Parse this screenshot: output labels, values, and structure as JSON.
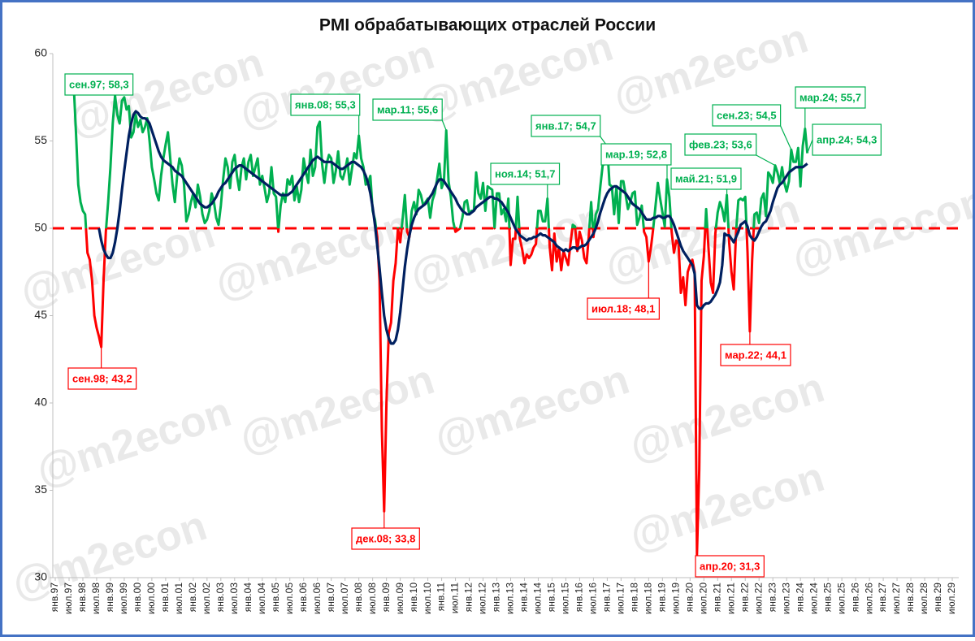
{
  "chart_data": {
    "type": "line",
    "title": "PMI обрабатывающих отраслей России",
    "watermark": "@m2econ",
    "ylim": [
      30,
      60
    ],
    "yticks": [
      30,
      35,
      40,
      45,
      50,
      55,
      60
    ],
    "grid": false,
    "threshold": {
      "value": 50,
      "color": "#ff0000"
    },
    "categories": [
      "янв.97",
      null,
      null,
      null,
      null,
      null,
      "июл.97",
      null,
      null,
      null,
      null,
      null,
      "янв.98",
      null,
      null,
      null,
      null,
      null,
      "июл.98",
      null,
      null,
      null,
      null,
      null,
      "янв.99",
      null,
      null,
      null,
      null,
      null,
      "июл.99",
      null,
      null,
      null,
      null,
      null,
      "янв.00",
      null,
      null,
      null,
      null,
      null,
      "июл.00",
      null,
      null,
      null,
      null,
      null,
      "янв.01",
      null,
      null,
      null,
      null,
      null,
      "июл.01",
      null,
      null,
      null,
      null,
      null,
      "янв.02",
      null,
      null,
      null,
      null,
      null,
      "июл.02",
      null,
      null,
      null,
      null,
      null,
      "янв.03",
      null,
      null,
      null,
      null,
      null,
      "июл.03",
      null,
      null,
      null,
      null,
      null,
      "янв.04",
      null,
      null,
      null,
      null,
      null,
      "июл.04",
      null,
      null,
      null,
      null,
      null,
      "янв.05",
      null,
      null,
      null,
      null,
      null,
      "июл.05",
      null,
      null,
      null,
      null,
      null,
      "янв.06",
      null,
      null,
      null,
      null,
      null,
      "июл.06",
      null,
      null,
      null,
      null,
      null,
      "янв.07",
      null,
      null,
      null,
      null,
      null,
      "июл.07",
      null,
      null,
      null,
      null,
      null,
      "янв.08",
      null,
      null,
      null,
      null,
      null,
      "июл.08",
      null,
      null,
      null,
      null,
      null,
      "янв.09",
      null,
      null,
      null,
      null,
      null,
      "июл.09",
      null,
      null,
      null,
      null,
      null,
      "янв.10",
      null,
      null,
      null,
      null,
      null,
      "июл.10",
      null,
      null,
      null,
      null,
      null,
      "янв.11",
      null,
      null,
      null,
      null,
      null,
      "июл.11",
      null,
      null,
      null,
      null,
      null,
      "янв.12",
      null,
      null,
      null,
      null,
      null,
      "июл.12",
      null,
      null,
      null,
      null,
      null,
      "янв.13",
      null,
      null,
      null,
      null,
      null,
      "июл.13",
      null,
      null,
      null,
      null,
      null,
      "янв.14",
      null,
      null,
      null,
      null,
      null,
      "июл.14",
      null,
      null,
      null,
      null,
      null,
      "янв.15",
      null,
      null,
      null,
      null,
      null,
      "июл.15",
      null,
      null,
      null,
      null,
      null,
      "янв.16",
      null,
      null,
      null,
      null,
      null,
      "июл.16",
      null,
      null,
      null,
      null,
      null,
      "янв.17",
      null,
      null,
      null,
      null,
      null,
      "июл.17",
      null,
      null,
      null,
      null,
      null,
      "янв.18",
      null,
      null,
      null,
      null,
      null,
      "июл.18",
      null,
      null,
      null,
      null,
      null,
      "янв.19",
      null,
      null,
      null,
      null,
      null,
      "июл.19",
      null,
      null,
      null,
      null,
      null,
      "янв.20",
      null,
      null,
      null,
      null,
      null,
      "июл.20",
      null,
      null,
      null,
      null,
      null,
      "янв.21",
      null,
      null,
      null,
      null,
      null,
      "июл.21",
      null,
      null,
      null,
      null,
      null,
      "янв.22",
      null,
      null,
      null,
      null,
      null,
      "июл.22",
      null,
      null,
      null,
      null,
      null,
      "янв.23",
      null,
      null,
      null,
      null,
      null,
      "июл.23",
      null,
      null,
      null,
      null,
      null,
      "янв.24",
      null,
      null,
      null,
      null,
      null,
      "июл.24",
      null,
      null,
      null,
      null,
      null,
      "янв.25",
      null,
      null,
      null,
      null,
      null,
      "июл.25",
      null,
      null,
      null,
      null,
      null,
      "янв.26",
      null,
      null,
      null,
      null,
      null,
      "июл.26",
      null,
      null,
      null,
      null,
      null,
      "янв.27",
      null,
      null,
      null,
      null,
      null,
      "июл.27",
      null,
      null,
      null,
      null,
      null,
      "янв.28",
      null,
      null,
      null,
      null,
      null,
      "июл.28",
      null,
      null,
      null,
      null,
      null,
      "янв.29",
      null,
      null,
      null,
      null,
      null,
      "июл.29"
    ],
    "series": [
      {
        "color_above": "#00b050",
        "color_below": "#ff0000",
        "values": [
          null,
          null,
          null,
          null,
          null,
          null,
          null,
          null,
          58.3,
          55.5,
          52.5,
          51.5,
          51.0,
          50.8,
          48.6,
          48.2,
          47.0,
          45.0,
          44.3,
          43.8,
          43.2,
          47.0,
          49.8,
          51.5,
          53.5,
          56.0,
          57.6,
          56.5,
          56.0,
          57.3,
          57.5,
          56.8,
          57.0,
          55.2,
          55.5,
          56.5,
          55.8,
          56.2,
          55.5,
          55.8,
          56.3,
          55.0,
          53.5,
          52.8,
          52.0,
          51.6,
          53.0,
          54.0,
          54.8,
          55.5,
          54.0,
          52.5,
          51.5,
          53.0,
          54.0,
          53.6,
          52.5,
          50.4,
          50.8,
          51.5,
          52.0,
          51.2,
          52.5,
          51.8,
          50.8,
          50.3,
          50.5,
          51.0,
          52.0,
          51.5,
          50.6,
          50.2,
          51.3,
          52.8,
          54.0,
          53.5,
          52.3,
          53.8,
          54.2,
          53.0,
          52.2,
          53.5,
          54.0,
          52.8,
          53.8,
          54.2,
          53.0,
          53.5,
          54.0,
          52.5,
          53.0,
          52.3,
          51.5,
          52.0,
          53.5,
          52.0,
          51.8,
          49.8,
          51.3,
          52.0,
          51.5,
          52.8,
          52.5,
          53.0,
          51.6,
          52.4,
          51.5,
          52.2,
          54.0,
          53.2,
          52.6,
          54.5,
          53.0,
          53.5,
          55.8,
          56.1,
          53.7,
          52.6,
          53.7,
          54.2,
          54.0,
          52.6,
          53.3,
          54.4,
          53.0,
          52.8,
          53.3,
          54.0,
          52.5,
          53.4,
          54.3,
          54.0,
          55.3,
          54.0,
          53.5,
          52.5,
          52.6,
          53.0,
          51.0,
          50.5,
          49.5,
          47.0,
          38.5,
          33.8,
          40.0,
          44.0,
          44.6,
          47.0,
          48.0,
          50.0,
          49.2,
          50.5,
          51.9,
          49.8,
          49.5,
          51.0,
          51.5,
          50.8,
          52.2,
          51.9,
          51.3,
          51.5,
          51.7,
          50.6,
          51.6,
          52.0,
          52.8,
          53.7,
          52.3,
          52.7,
          55.6,
          52.7,
          51.8,
          50.4,
          49.8,
          49.9,
          50.0,
          50.6,
          51.5,
          51.6,
          50.8,
          51.0,
          51.0,
          53.2,
          52.0,
          51.7,
          52.6,
          51.0,
          52.4,
          52.3,
          52.2,
          50.0,
          52.0,
          52.0,
          50.8,
          51.1,
          50.4,
          51.7,
          47.9,
          49.4,
          49.4,
          51.8,
          49.4,
          48.8,
          48.0,
          48.5,
          48.3,
          48.5,
          48.9,
          49.1,
          51.0,
          51.0,
          50.4,
          50.4,
          51.7,
          48.9,
          47.6,
          49.7,
          48.1,
          48.9,
          47.6,
          48.7,
          48.3,
          47.9,
          49.1,
          50.2,
          50.1,
          48.7,
          49.8,
          49.3,
          48.3,
          48.0,
          49.6,
          51.5,
          49.5,
          50.8,
          51.1,
          52.4,
          53.6,
          53.7,
          54.7,
          52.5,
          52.4,
          50.8,
          52.4,
          50.3,
          52.7,
          52.7,
          51.9,
          51.1,
          51.5,
          52.0,
          52.1,
          50.2,
          50.6,
          51.3,
          49.8,
          49.5,
          48.1,
          48.9,
          50.0,
          51.3,
          52.6,
          51.7,
          50.9,
          50.1,
          52.8,
          51.8,
          49.8,
          48.6,
          49.3,
          49.1,
          46.3,
          47.2,
          45.6,
          47.5,
          47.9,
          48.2,
          47.5,
          31.3,
          36.2,
          47.0,
          48.4,
          51.1,
          48.9,
          46.9,
          46.3,
          49.7,
          50.9,
          51.5,
          51.1,
          50.4,
          51.9,
          49.2,
          47.5,
          46.5,
          49.8,
          51.6,
          51.7,
          51.6,
          51.8,
          48.6,
          44.1,
          48.2,
          50.8,
          50.9,
          50.3,
          51.7,
          52.0,
          50.7,
          53.2,
          53.0,
          52.6,
          53.6,
          53.2,
          52.6,
          53.5,
          52.6,
          52.1,
          52.7,
          54.5,
          53.8,
          53.8,
          54.6,
          52.4,
          54.7,
          55.7,
          54.3,
          null,
          null,
          null,
          null,
          null,
          null,
          null,
          null,
          null,
          null,
          null,
          null,
          null,
          null,
          null,
          null,
          null,
          null,
          null,
          null,
          null,
          null,
          null,
          null,
          null,
          null,
          null,
          null,
          null,
          null,
          null,
          null,
          null,
          null,
          null,
          null,
          null,
          null,
          null,
          null,
          null,
          null,
          null,
          null,
          null,
          null,
          null,
          null,
          null,
          null,
          null,
          null,
          null,
          null,
          null,
          null,
          null,
          null,
          null,
          null,
          null,
          null,
          null
        ]
      },
      {
        "color": "#002060",
        "values": [
          null,
          null,
          null,
          null,
          null,
          null,
          null,
          null,
          null,
          null,
          null,
          null,
          null,
          null,
          null,
          null,
          null,
          null,
          null,
          50.0,
          49.3,
          48.8,
          48.5,
          48.3,
          48.3,
          48.6,
          49.2,
          50.0,
          51.0,
          52.2,
          53.3,
          54.3,
          55.3,
          56.0,
          56.5,
          56.7,
          56.6,
          56.4,
          56.3,
          56.3,
          56.2,
          56.0,
          55.6,
          55.2,
          54.8,
          54.4,
          54.1,
          53.9,
          53.8,
          53.7,
          53.6,
          53.5,
          53.3,
          53.2,
          53.1,
          53.0,
          52.8,
          52.6,
          52.4,
          52.2,
          52.0,
          51.8,
          51.6,
          51.4,
          51.3,
          51.2,
          51.2,
          51.3,
          51.4,
          51.6,
          51.8,
          52.1,
          52.3,
          52.5,
          52.6,
          52.8,
          53.0,
          53.2,
          53.4,
          53.5,
          53.6,
          53.6,
          53.5,
          53.4,
          53.3,
          53.2,
          53.1,
          53.0,
          52.9,
          52.8,
          52.7,
          52.6,
          52.5,
          52.4,
          52.3,
          52.2,
          52.1,
          52.0,
          51.9,
          51.9,
          51.9,
          51.9,
          52.0,
          52.1,
          52.3,
          52.5,
          52.7,
          52.9,
          53.1,
          53.3,
          53.5,
          53.7,
          53.9,
          54.0,
          54.1,
          54.0,
          53.9,
          53.8,
          53.8,
          53.8,
          53.8,
          53.7,
          53.6,
          53.5,
          53.4,
          53.4,
          53.5,
          53.6,
          53.7,
          53.8,
          53.8,
          53.7,
          53.6,
          53.5,
          53.3,
          53.0,
          52.6,
          52.0,
          51.2,
          50.2,
          49.0,
          47.7,
          46.3,
          45.0,
          44.2,
          43.7,
          43.4,
          43.4,
          43.6,
          44.2,
          45.2,
          46.5,
          47.8,
          48.8,
          49.6,
          50.2,
          50.6,
          50.9,
          51.1,
          51.2,
          51.3,
          51.4,
          51.6,
          51.8,
          52.0,
          52.3,
          52.6,
          52.8,
          52.8,
          52.7,
          52.5,
          52.3,
          52.1,
          51.9,
          51.7,
          51.4,
          51.2,
          51.0,
          50.9,
          50.8,
          50.8,
          50.9,
          51.0,
          51.2,
          51.3,
          51.4,
          51.5,
          51.6,
          51.7,
          51.8,
          51.8,
          51.7,
          51.7,
          51.6,
          51.5,
          51.3,
          51.1,
          50.9,
          50.6,
          50.3,
          50.0,
          49.8,
          49.6,
          49.5,
          49.4,
          49.3,
          49.4,
          49.4,
          49.5,
          49.5,
          49.6,
          49.7,
          49.6,
          49.6,
          49.5,
          49.4,
          49.3,
          49.2,
          49.0,
          48.9,
          48.8,
          48.7,
          48.8,
          48.7,
          48.8,
          48.9,
          48.9,
          48.8,
          48.9,
          49.0,
          49.0,
          49.1,
          49.3,
          49.5,
          49.7,
          50.0,
          50.4,
          50.9,
          51.3,
          51.7,
          52.0,
          52.2,
          52.3,
          52.4,
          52.4,
          52.3,
          52.2,
          52.1,
          52.0,
          51.8,
          51.6,
          51.4,
          51.3,
          51.2,
          51.1,
          50.9,
          50.7,
          50.5,
          50.5,
          50.5,
          50.6,
          50.6,
          50.7,
          50.7,
          50.6,
          50.6,
          50.7,
          50.7,
          50.5,
          50.2,
          49.8,
          49.4,
          49.0,
          48.7,
          48.5,
          48.3,
          48.1,
          47.9,
          47.4,
          45.6,
          45.4,
          45.4,
          45.6,
          45.7,
          45.7,
          45.8,
          46.0,
          46.2,
          46.5,
          46.9,
          47.9,
          49.7,
          49.6,
          49.6,
          49.4,
          49.2,
          49.5,
          49.8,
          50.2,
          50.3,
          50.4,
          50.1,
          49.6,
          49.4,
          49.3,
          49.5,
          49.8,
          50.1,
          50.3,
          50.4,
          50.7,
          51.0,
          51.5,
          51.9,
          52.3,
          52.5,
          52.6,
          52.8,
          53.0,
          53.2,
          53.3,
          53.4,
          53.5,
          53.5,
          53.5,
          53.5,
          53.6,
          53.7,
          null,
          null,
          null,
          null,
          null,
          null,
          null,
          null,
          null,
          null,
          null,
          null,
          null,
          null,
          null,
          null,
          null,
          null,
          null,
          null,
          null,
          null,
          null,
          null,
          null,
          null,
          null,
          null,
          null,
          null,
          null,
          null,
          null,
          null,
          null,
          null,
          null,
          null,
          null,
          null,
          null,
          null,
          null,
          null,
          null,
          null,
          null,
          null,
          null,
          null,
          null,
          null,
          null,
          null,
          null,
          null,
          null,
          null,
          null,
          null,
          null,
          null,
          null
        ]
      }
    ],
    "annotations": [
      {
        "text": "сен.97; 58,3"
      },
      {
        "text": "сен.98; 43,2"
      },
      {
        "text": "янв.08; 55,3"
      },
      {
        "text": "дек.08; 33,8"
      },
      {
        "text": "мар.11; 55,6"
      },
      {
        "text": "ноя.14; 51,7"
      },
      {
        "text": "янв.17; 54,7"
      },
      {
        "text": "июл.18; 48,1"
      },
      {
        "text": "мар.19; 52,8"
      },
      {
        "text": "апр.20; 31,3"
      },
      {
        "text": "май.21; 51,9"
      },
      {
        "text": "мар.22; 44,1"
      },
      {
        "text": "фев.23; 53,6"
      },
      {
        "text": "сен.23; 54,5"
      },
      {
        "text": "мар.24; 55,7"
      },
      {
        "text": "апр.24; 54,3"
      }
    ]
  }
}
